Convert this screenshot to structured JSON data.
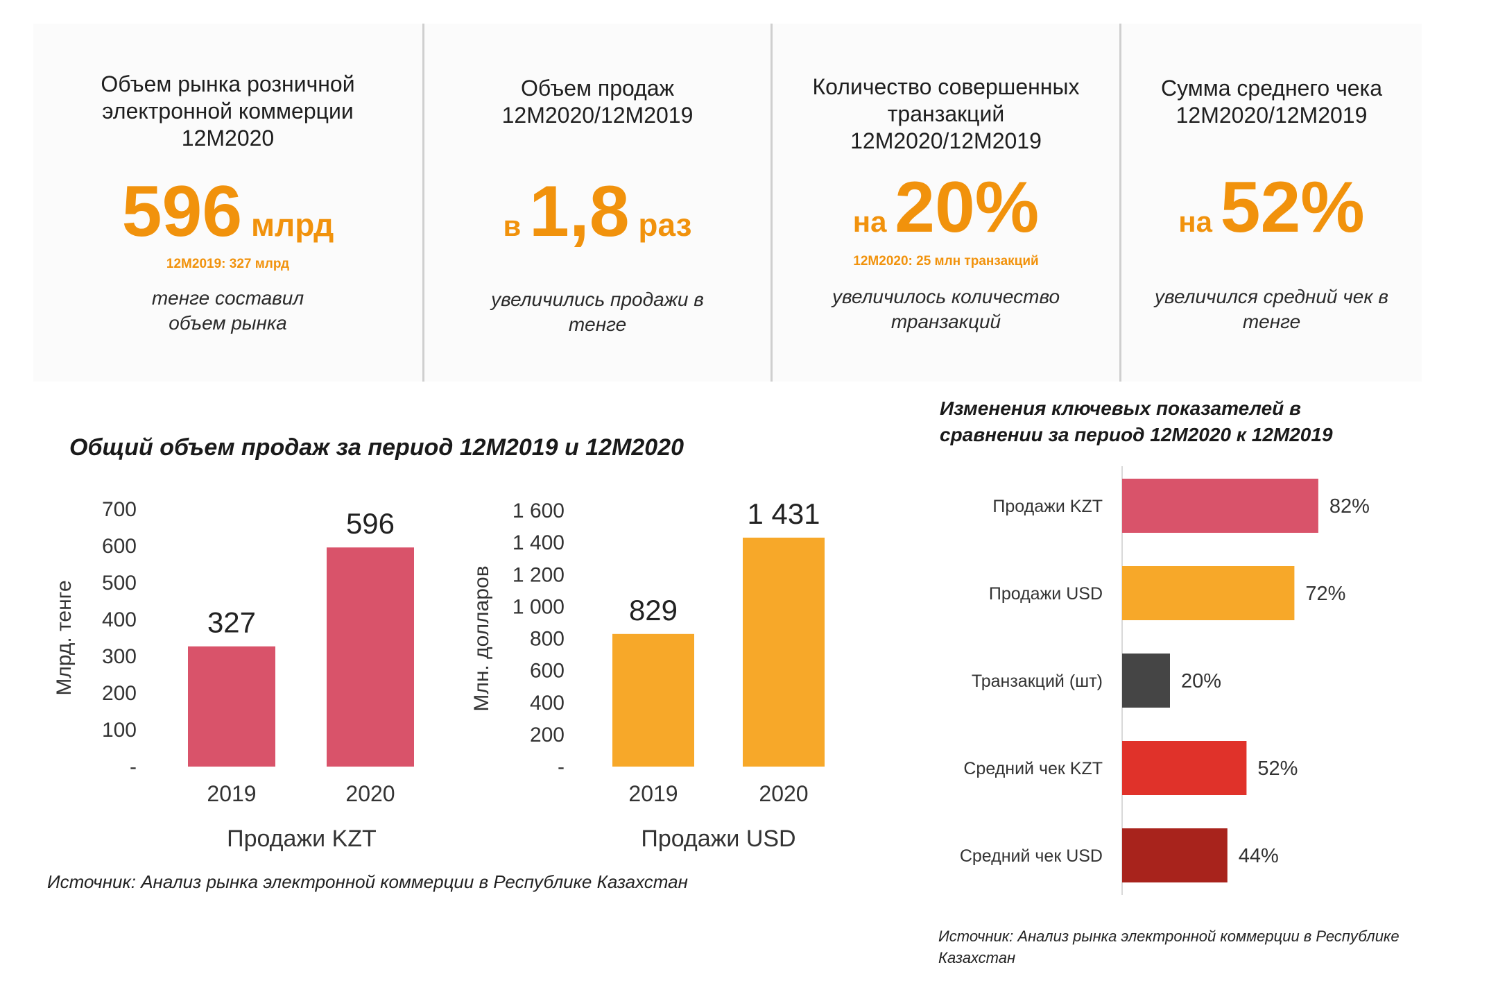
{
  "kpis": [
    {
      "heading": [
        "Объем рынка розничной",
        "электронной коммерции",
        "12M2020"
      ],
      "prefix": "",
      "value": "596",
      "unit": " млрд",
      "note": "12M2019: 327 млрд",
      "desc": [
        "тенге составил",
        "объем рынка"
      ]
    },
    {
      "heading": [
        "Объем продаж",
        "12M2020/12M2019"
      ],
      "prefix": "в ",
      "value": "1,8",
      "unit": " раз",
      "note": "",
      "desc": [
        "увеличились продажи в",
        "тенге"
      ]
    },
    {
      "heading": [
        "Количество совершенных",
        "транзакций",
        "12M2020/12M2019"
      ],
      "prefix": "на ",
      "value": "20%",
      "unit": "",
      "note": "12M2020: 25 млн транзакций",
      "desc": [
        "увеличилось количество",
        "транзакций"
      ]
    },
    {
      "heading": [
        "Сумма среднего чека",
        "12M2020/12M2019"
      ],
      "prefix": "на ",
      "value": "52%",
      "unit": "",
      "note": "",
      "desc": [
        "увеличился средний чек в",
        "тенге"
      ]
    }
  ],
  "sales_title": "Общий объем продаж за период 12M2019 и 12M2020",
  "sales_source": "Источник: Анализ рынка электронной коммерции в Республике Казахстан",
  "changes_title": [
    "Изменения ключевых показателей в",
    "сравнении за период 12M2020 к 12M2019"
  ],
  "changes_source": [
    "Источник: Анализ рынка электронной коммерции в Республике",
    "Казахстан"
  ],
  "chart_data": [
    {
      "type": "bar",
      "title": "",
      "xlabel": "Продажи KZT",
      "ylabel": "Млрд. тенге",
      "categories": [
        "2019",
        "2020"
      ],
      "values": [
        327,
        596
      ],
      "data_labels": [
        "327",
        "596"
      ],
      "ylim": [
        0,
        700
      ],
      "yticks": [
        "-",
        "100",
        "200",
        "300",
        "400",
        "500",
        "600",
        "700"
      ],
      "grid": false,
      "color": "#d9536a"
    },
    {
      "type": "bar",
      "title": "",
      "xlabel": "Продажи USD",
      "ylabel": "Млн. долларов",
      "categories": [
        "2019",
        "2020"
      ],
      "values": [
        829,
        1431
      ],
      "data_labels": [
        "829",
        "1 431"
      ],
      "ylim": [
        0,
        1600
      ],
      "yticks": [
        "-",
        "200",
        "400",
        "600",
        "800",
        "1 000",
        "1 200",
        "1 400",
        "1 600"
      ],
      "grid": false,
      "color": "#f7a829"
    },
    {
      "type": "bar",
      "orientation": "horizontal",
      "title": "Изменения ключевых показателей в сравнении за период 12M2020 к 12M2019",
      "categories": [
        "Продажи KZT",
        "Продажи USD",
        "Транзакций (шт)",
        "Средний чек KZT",
        "Средний чек USD"
      ],
      "values": [
        82,
        72,
        20,
        52,
        44
      ],
      "data_labels": [
        "82%",
        "72%",
        "20%",
        "52%",
        "44%"
      ],
      "colors": [
        "#d9536a",
        "#f7a829",
        "#454545",
        "#e0322a",
        "#a8231c"
      ],
      "xlim": [
        0,
        100
      ],
      "grid": false
    }
  ]
}
